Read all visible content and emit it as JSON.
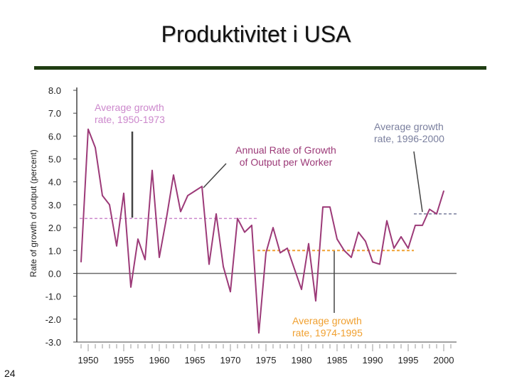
{
  "slide": {
    "title": "Produktivitet i USA",
    "page_number": "24"
  },
  "colors": {
    "title_rule": "#1f3d12",
    "series_line": "#9c3a78",
    "avg_1950_1973": "#cc88cc",
    "avg_1974_1995": "#f0a030",
    "avg_1996_2000": "#7a7f9e",
    "axis": "#444444",
    "zero_line": "#6a6a6a",
    "annotation_pointer": "#444444"
  },
  "chart_data": {
    "type": "line",
    "title": "",
    "xlabel": "",
    "ylabel": "Rate of growth of output (percent)",
    "xlim": [
      1948.5,
      2002
    ],
    "ylim": [
      -3.0,
      8.0
    ],
    "y_ticks": [
      "8.0",
      "7.0",
      "6.0",
      "5.0",
      "4.0",
      "3.0",
      "2.0",
      "1.0",
      "0.0",
      "-1.0",
      "-2.0",
      "-3.0"
    ],
    "x_ticks": [
      "1950",
      "1955",
      "1960",
      "1965",
      "1970",
      "1975",
      "1980",
      "1985",
      "1990",
      "1995",
      "2000"
    ],
    "series": [
      {
        "name": "Annual Rate of Growth of Output per Worker",
        "x": [
          1949,
          1950,
          1951,
          1952,
          1953,
          1954,
          1955,
          1956,
          1957,
          1958,
          1959,
          1960,
          1961,
          1962,
          1963,
          1964,
          1965,
          1966,
          1967,
          1968,
          1969,
          1970,
          1971,
          1972,
          1973,
          1974,
          1975,
          1976,
          1977,
          1978,
          1979,
          1980,
          1981,
          1982,
          1983,
          1984,
          1985,
          1986,
          1987,
          1988,
          1989,
          1990,
          1991,
          1992,
          1993,
          1994,
          1995,
          1996,
          1997,
          1998,
          1999,
          2000
        ],
        "values": [
          0.5,
          6.3,
          5.5,
          3.4,
          3.0,
          1.2,
          3.5,
          -0.6,
          1.5,
          0.6,
          4.5,
          0.7,
          2.4,
          4.3,
          2.7,
          3.4,
          3.6,
          3.8,
          0.4,
          2.6,
          0.3,
          -0.8,
          2.4,
          1.8,
          2.1,
          -2.6,
          0.9,
          2.0,
          0.9,
          1.1,
          0.2,
          -0.7,
          1.3,
          -1.2,
          2.9,
          2.9,
          1.5,
          1.0,
          0.7,
          1.8,
          1.4,
          0.5,
          0.4,
          2.3,
          1.1,
          1.6,
          1.1,
          2.1,
          2.1,
          2.8,
          2.6,
          3.6
        ]
      }
    ],
    "averages": [
      {
        "label": "Average growth rate, 1950-1973",
        "from": 1949,
        "to": 1973,
        "value": 2.4
      },
      {
        "label": "Average growth rate, 1974-1995",
        "from": 1974,
        "to": 1995,
        "value": 1.0
      },
      {
        "label": "Average growth rate, 1996-2000",
        "from": 1996,
        "to": 2001,
        "value": 2.6
      }
    ],
    "annotations": [
      {
        "lines": [
          "Average growth",
          "rate, 1950-1973"
        ]
      },
      {
        "lines": [
          "Annual Rate of Growth",
          "of Output per Worker"
        ]
      },
      {
        "lines": [
          "Average growth",
          "rate, 1996-2000"
        ]
      },
      {
        "lines": [
          "Average growth",
          "rate, 1974-1995"
        ]
      }
    ],
    "grid": false
  }
}
